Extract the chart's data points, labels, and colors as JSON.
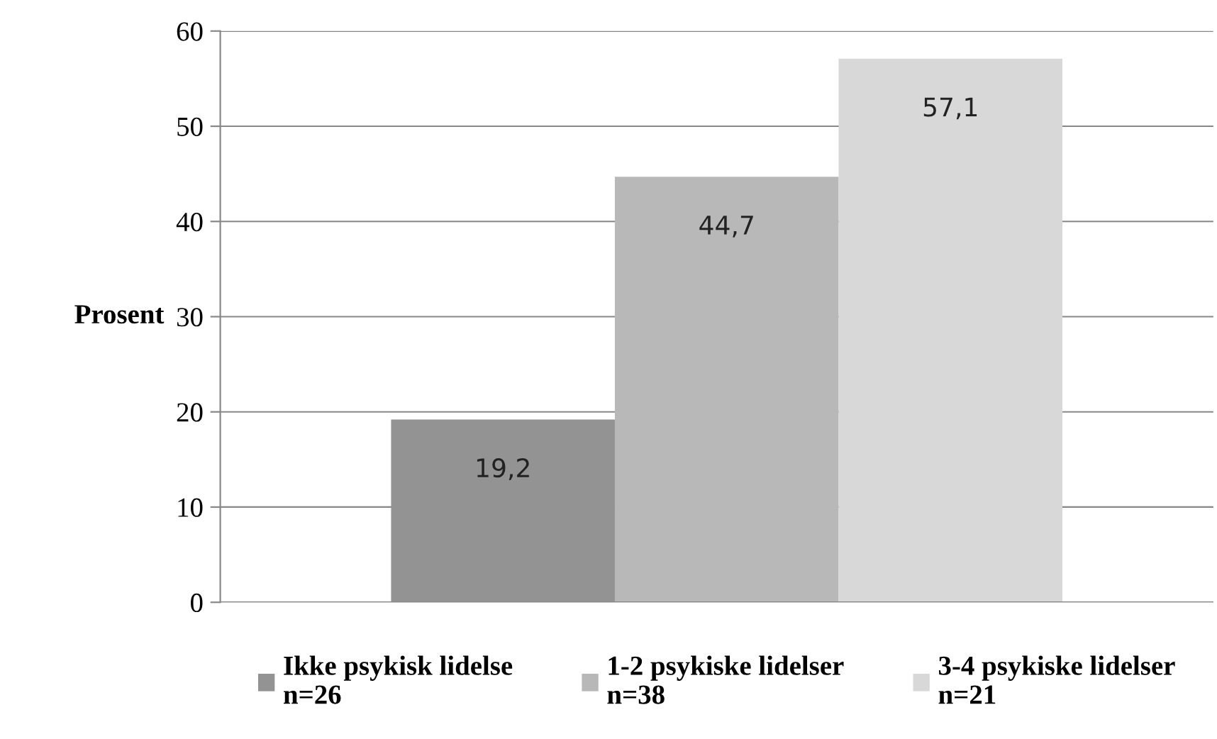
{
  "chart_data": {
    "type": "bar",
    "categories": [
      null
    ],
    "ylabel": "Prosent",
    "series": [
      {
        "name": "Ikke psykisk lidelse\nn=26",
        "color": "#939393",
        "values": [
          19.2
        ],
        "value_labels": [
          "19,2"
        ]
      },
      {
        "name": "1-2 psykiske lidelser\nn=38",
        "color": "#b8b8b8",
        "values": [
          44.7
        ],
        "value_labels": [
          "44,7"
        ]
      },
      {
        "name": "3-4 psykiske lidelser\nn=21",
        "color": "#d8d8d8",
        "values": [
          57.1
        ],
        "value_labels": [
          "57,1"
        ]
      }
    ],
    "ylim": [
      0,
      60
    ],
    "yticks": [
      0,
      10,
      20,
      30,
      40,
      50,
      60
    ],
    "grid": "y",
    "legend": "bottom"
  }
}
